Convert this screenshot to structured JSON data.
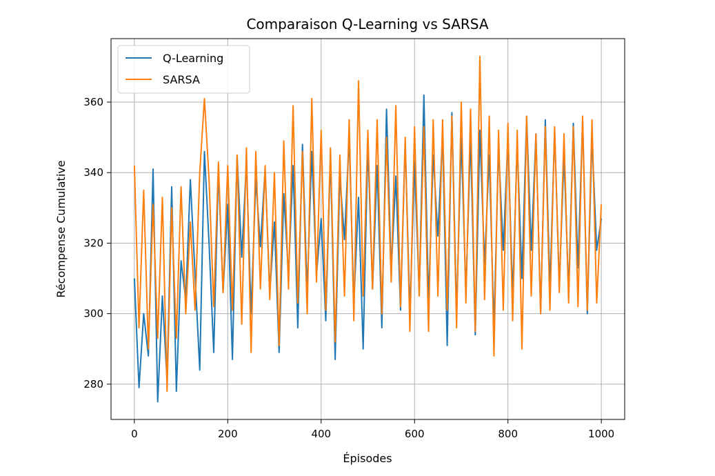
{
  "colors": {
    "q_learning": "#1f77b4",
    "sarsa": "#ff7f0e",
    "grid": "#b0b0b0",
    "axes": "#000000",
    "background": "#ffffff"
  },
  "chart_data": {
    "type": "line",
    "title": "Comparaison Q-Learning vs SARSA",
    "xlabel": "Épisodes",
    "ylabel": "Récompense Cumulative",
    "xlim": [
      -50,
      1050
    ],
    "ylim": [
      270,
      378
    ],
    "xticks": [
      0,
      200,
      400,
      600,
      800,
      1000
    ],
    "xtick_labels": [
      "0",
      "200",
      "400",
      "600",
      "800",
      "1000"
    ],
    "yticks": [
      280,
      300,
      320,
      340,
      360
    ],
    "ytick_labels": [
      "280",
      "300",
      "320",
      "340",
      "360"
    ],
    "grid": true,
    "legend": {
      "placement": "top-left",
      "entries": [
        "Q-Learning",
        "SARSA"
      ]
    },
    "series": [
      {
        "name": "Q-Learning",
        "color": "#1f77b4",
        "x": [
          0,
          10,
          20,
          30,
          40,
          50,
          60,
          70,
          80,
          90,
          100,
          110,
          120,
          130,
          140,
          150,
          160,
          170,
          180,
          190,
          200,
          210,
          220,
          230,
          240,
          250,
          260,
          270,
          280,
          290,
          300,
          310,
          320,
          330,
          340,
          350,
          360,
          370,
          380,
          390,
          400,
          410,
          420,
          430,
          440,
          450,
          460,
          470,
          480,
          490,
          500,
          510,
          520,
          530,
          540,
          550,
          560,
          570,
          580,
          590,
          600,
          610,
          620,
          630,
          640,
          650,
          660,
          670,
          680,
          690,
          700,
          710,
          720,
          730,
          740,
          750,
          760,
          770,
          780,
          790,
          800,
          810,
          820,
          830,
          840,
          850,
          860,
          870,
          880,
          890,
          900,
          910,
          920,
          930,
          940,
          950,
          960,
          970,
          980,
          990,
          1000
        ],
        "values": [
          310,
          279,
          300,
          288,
          341,
          275,
          305,
          281,
          336,
          278,
          315,
          304,
          338,
          311,
          284,
          346,
          320,
          289,
          341,
          306,
          331,
          287,
          345,
          316,
          343,
          300,
          338,
          319,
          341,
          306,
          326,
          289,
          334,
          311,
          342,
          296,
          348,
          306,
          346,
          311,
          327,
          298,
          345,
          287,
          339,
          321,
          350,
          303,
          333,
          290,
          348,
          307,
          342,
          296,
          358,
          312,
          339,
          301,
          349,
          300,
          343,
          306,
          362,
          303,
          345,
          322,
          351,
          291,
          357,
          300,
          350,
          306,
          350,
          294,
          352,
          314,
          345,
          296,
          347,
          318,
          350,
          305,
          348,
          310,
          356,
          318,
          351,
          300,
          355,
          307,
          352,
          308,
          345,
          306,
          354,
          313,
          355,
          300,
          350,
          318,
          327
        ]
      },
      {
        "name": "SARSA",
        "color": "#ff7f0e",
        "x": [
          0,
          10,
          20,
          30,
          40,
          50,
          60,
          70,
          80,
          90,
          100,
          110,
          120,
          130,
          140,
          150,
          160,
          170,
          180,
          190,
          200,
          210,
          220,
          230,
          240,
          250,
          260,
          270,
          280,
          290,
          300,
          310,
          320,
          330,
          340,
          350,
          360,
          370,
          380,
          390,
          400,
          410,
          420,
          430,
          440,
          450,
          460,
          470,
          480,
          490,
          500,
          510,
          520,
          530,
          540,
          550,
          560,
          570,
          580,
          590,
          600,
          610,
          620,
          630,
          640,
          650,
          660,
          670,
          680,
          690,
          700,
          710,
          720,
          730,
          740,
          750,
          760,
          770,
          780,
          790,
          800,
          810,
          820,
          830,
          840,
          850,
          860,
          870,
          880,
          890,
          900,
          910,
          920,
          930,
          940,
          950,
          960,
          970,
          980,
          990,
          1000
        ],
        "values": [
          342,
          296,
          335,
          290,
          331,
          293,
          333,
          278,
          330,
          293,
          336,
          300,
          326,
          301,
          340,
          361,
          338,
          302,
          343,
          306,
          342,
          301,
          345,
          297,
          347,
          289,
          346,
          307,
          342,
          304,
          340,
          291,
          349,
          307,
          359,
          303,
          346,
          300,
          361,
          309,
          352,
          301,
          347,
          292,
          345,
          305,
          355,
          298,
          366,
          305,
          352,
          307,
          355,
          300,
          350,
          309,
          359,
          302,
          350,
          295,
          353,
          305,
          353,
          295,
          355,
          305,
          355,
          301,
          356,
          296,
          360,
          303,
          358,
          295,
          373,
          304,
          356,
          288,
          352,
          301,
          354,
          298,
          352,
          290,
          356,
          305,
          351,
          300,
          353,
          301,
          353,
          306,
          351,
          303,
          353,
          302,
          356,
          301,
          355,
          303,
          331
        ]
      }
    ]
  }
}
